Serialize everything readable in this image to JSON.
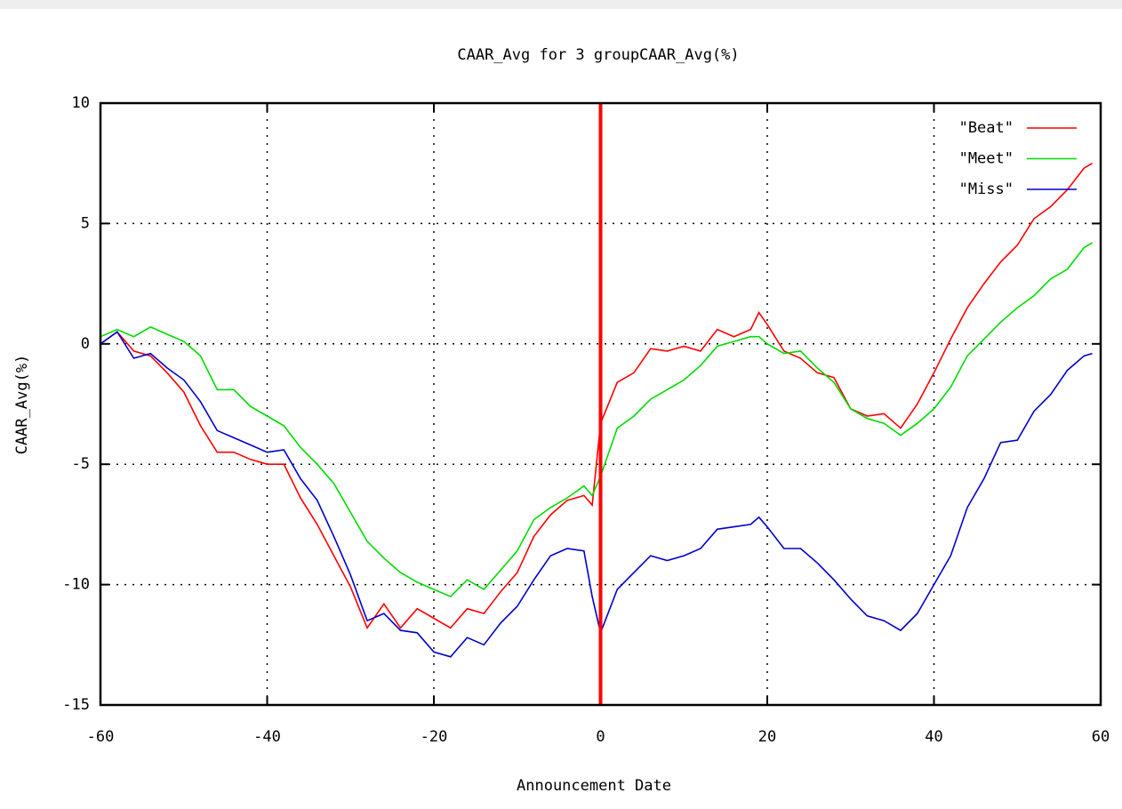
{
  "chart_data": {
    "type": "line",
    "title": "CAAR_Avg for 3 groupCAAR_Avg(%)",
    "xlabel": "Announcement Date",
    "ylabel": "CAAR_Avg(%)",
    "x": [
      -60,
      -58,
      -56,
      -54,
      -52,
      -50,
      -48,
      -46,
      -44,
      -42,
      -40,
      -38,
      -36,
      -34,
      -32,
      -30,
      -28,
      -26,
      -24,
      -22,
      -20,
      -18,
      -16,
      -14,
      -12,
      -10,
      -8,
      -6,
      -4,
      -2,
      -1,
      0,
      2,
      4,
      6,
      8,
      10,
      12,
      14,
      16,
      18,
      19,
      20,
      22,
      24,
      26,
      28,
      30,
      32,
      34,
      36,
      38,
      40,
      42,
      44,
      46,
      48,
      50,
      52,
      54,
      56,
      58,
      59
    ],
    "series": [
      {
        "name": "\"Beat\"",
        "color": "#ff0000",
        "values": [
          0.0,
          0.5,
          -0.3,
          -0.5,
          -1.2,
          -2.0,
          -3.4,
          -4.5,
          -4.5,
          -4.8,
          -5.0,
          -5.0,
          -6.4,
          -7.5,
          -8.8,
          -10.1,
          -11.8,
          -10.8,
          -11.8,
          -11.0,
          -11.4,
          -11.8,
          -11.0,
          -11.2,
          -10.3,
          -9.5,
          -8.0,
          -7.1,
          -6.5,
          -6.3,
          -6.7,
          -3.3,
          -1.6,
          -1.2,
          -0.2,
          -0.3,
          -0.1,
          -0.3,
          0.6,
          0.3,
          0.6,
          1.3,
          0.8,
          -0.3,
          -0.6,
          -1.2,
          -1.4,
          -2.7,
          -3.0,
          -2.9,
          -3.5,
          -2.5,
          -1.2,
          0.2,
          1.5,
          2.5,
          3.4,
          4.1,
          5.2,
          5.7,
          6.4,
          7.3,
          7.5
        ]
      },
      {
        "name": "\"Meet\"",
        "color": "#00dd00",
        "values": [
          0.3,
          0.6,
          0.3,
          0.7,
          0.4,
          0.1,
          -0.5,
          -1.9,
          -1.9,
          -2.6,
          -3.0,
          -3.4,
          -4.3,
          -5.0,
          -5.8,
          -7.0,
          -8.2,
          -8.9,
          -9.5,
          -9.9,
          -10.2,
          -10.5,
          -9.8,
          -10.2,
          -9.4,
          -8.6,
          -7.3,
          -6.8,
          -6.4,
          -5.9,
          -6.3,
          -5.5,
          -3.5,
          -3.0,
          -2.3,
          -1.9,
          -1.5,
          -0.9,
          -0.1,
          0.1,
          0.3,
          0.3,
          0.0,
          -0.4,
          -0.3,
          -1.0,
          -1.6,
          -2.7,
          -3.1,
          -3.3,
          -3.8,
          -3.3,
          -2.7,
          -1.8,
          -0.5,
          0.2,
          0.9,
          1.5,
          2.0,
          2.7,
          3.1,
          4.0,
          4.2
        ]
      },
      {
        "name": "\"Miss\"",
        "color": "#0000cc",
        "values": [
          0.0,
          0.5,
          -0.6,
          -0.4,
          -1.0,
          -1.5,
          -2.4,
          -3.6,
          -3.9,
          -4.2,
          -4.5,
          -4.4,
          -5.6,
          -6.5,
          -8.0,
          -9.6,
          -11.5,
          -11.2,
          -11.9,
          -12.0,
          -12.8,
          -13.0,
          -12.2,
          -12.5,
          -11.6,
          -10.9,
          -9.8,
          -8.8,
          -8.5,
          -8.6,
          -10.5,
          -12.0,
          -10.2,
          -9.5,
          -8.8,
          -9.0,
          -8.8,
          -8.5,
          -7.7,
          -7.6,
          -7.5,
          -7.2,
          -7.6,
          -8.5,
          -8.5,
          -9.1,
          -9.8,
          -10.6,
          -11.3,
          -11.5,
          -11.9,
          -11.2,
          -10.0,
          -8.8,
          -6.8,
          -5.6,
          -4.1,
          -4.0,
          -2.8,
          -2.1,
          -1.1,
          -0.5,
          -0.4
        ]
      }
    ],
    "vline": {
      "x": 0,
      "color": "#ff0000"
    },
    "xlim": [
      -60,
      60
    ],
    "xticks": [
      -60,
      -40,
      -20,
      0,
      20,
      40,
      60
    ],
    "ylim": [
      -15,
      10
    ],
    "yticks": [
      -15,
      -10,
      -5,
      0,
      5,
      10
    ],
    "grid": true,
    "legend": "top-right"
  }
}
